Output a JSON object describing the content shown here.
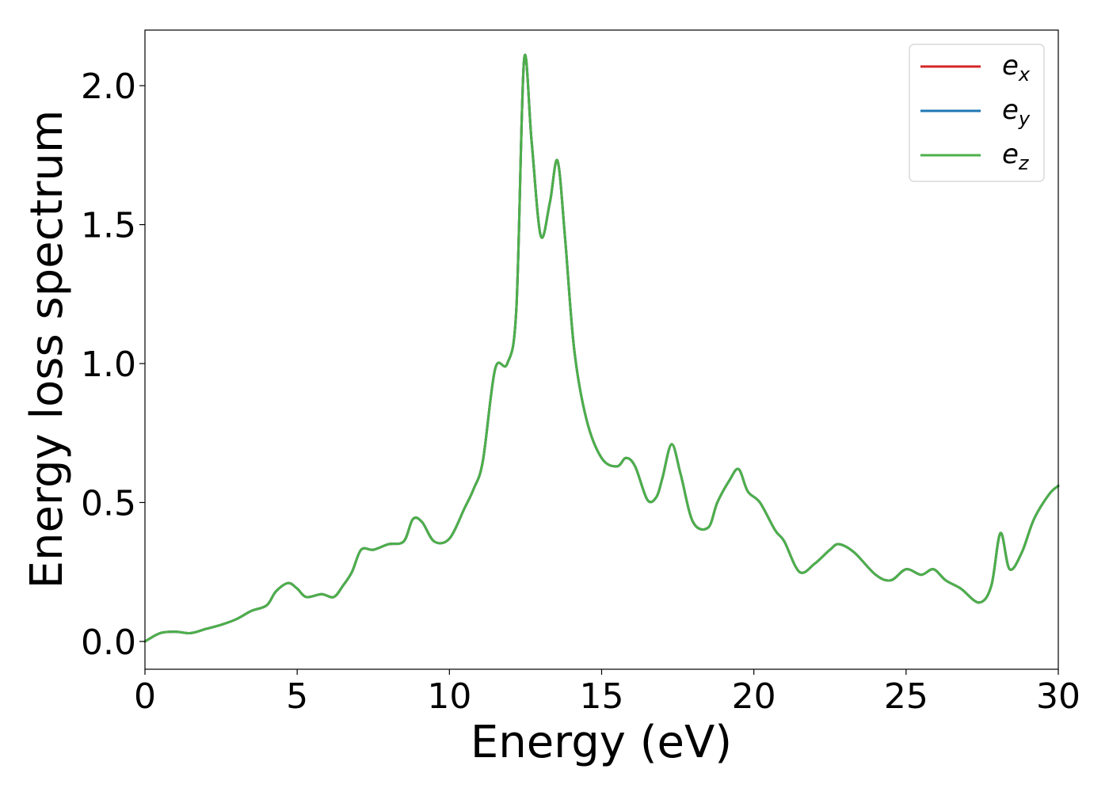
{
  "chart_data": {
    "type": "line",
    "xlabel": "Energy (eV)",
    "ylabel": "Energy loss spectrum",
    "xlim": [
      0,
      30
    ],
    "ylim": [
      -0.1,
      2.2
    ],
    "xticks": [
      0,
      5,
      10,
      15,
      20,
      25,
      30
    ],
    "xtick_labels": [
      "0",
      "5",
      "10",
      "15",
      "20",
      "25",
      "30"
    ],
    "yticks": [
      0.0,
      0.5,
      1.0,
      1.5,
      2.0
    ],
    "ytick_labels": [
      "0.0",
      "0.5",
      "1.0",
      "1.5",
      "2.0"
    ],
    "grid": false,
    "legend_position": "top-right",
    "legend": [
      {
        "base": "e",
        "sub": "x",
        "color": "#d62728"
      },
      {
        "base": "e",
        "sub": "y",
        "color": "#1f77b4"
      },
      {
        "base": "e",
        "sub": "z",
        "color": "#4daf4a"
      }
    ],
    "x": [
      0,
      0.5,
      1,
      1.5,
      2,
      2.5,
      3,
      3.5,
      4,
      4.3,
      4.7,
      5,
      5.3,
      5.8,
      6.2,
      6.5,
      6.8,
      7.1,
      7.5,
      8,
      8.5,
      8.8,
      9.1,
      9.5,
      10,
      10.5,
      10.8,
      11.1,
      11.5,
      11.9,
      12.2,
      12.45,
      12.7,
      13.0,
      13.3,
      13.55,
      13.8,
      14.1,
      14.5,
      15,
      15.5,
      15.8,
      16.1,
      16.5,
      16.8,
      17.0,
      17.3,
      17.6,
      18.0,
      18.5,
      18.8,
      19.2,
      19.5,
      19.8,
      20.2,
      20.7,
      21,
      21.5,
      22,
      22.5,
      22.8,
      23.3,
      24,
      24.5,
      25,
      25.5,
      25.9,
      26.3,
      26.8,
      27.4,
      27.8,
      28.1,
      28.4,
      28.8,
      29.2,
      29.7,
      30
    ],
    "series": [
      {
        "name": "e_x",
        "color": "#d62728",
        "values": [
          0.0,
          0.03,
          0.035,
          0.03,
          0.045,
          0.06,
          0.08,
          0.11,
          0.13,
          0.18,
          0.21,
          0.19,
          0.16,
          0.17,
          0.16,
          0.2,
          0.25,
          0.33,
          0.33,
          0.35,
          0.36,
          0.44,
          0.43,
          0.36,
          0.37,
          0.48,
          0.55,
          0.65,
          0.98,
          1.0,
          1.2,
          2.09,
          1.8,
          1.46,
          1.58,
          1.73,
          1.45,
          1.05,
          0.8,
          0.66,
          0.63,
          0.66,
          0.63,
          0.51,
          0.52,
          0.59,
          0.71,
          0.6,
          0.43,
          0.41,
          0.5,
          0.58,
          0.62,
          0.54,
          0.5,
          0.4,
          0.36,
          0.25,
          0.28,
          0.33,
          0.35,
          0.32,
          0.24,
          0.22,
          0.26,
          0.24,
          0.26,
          0.22,
          0.19,
          0.14,
          0.2,
          0.39,
          0.26,
          0.32,
          0.44,
          0.53,
          0.56
        ]
      },
      {
        "name": "e_y",
        "color": "#1f77b4",
        "values": [
          0.0,
          0.03,
          0.035,
          0.03,
          0.045,
          0.06,
          0.08,
          0.11,
          0.13,
          0.18,
          0.21,
          0.19,
          0.16,
          0.17,
          0.16,
          0.2,
          0.25,
          0.33,
          0.33,
          0.35,
          0.36,
          0.44,
          0.43,
          0.36,
          0.37,
          0.48,
          0.55,
          0.65,
          0.98,
          1.0,
          1.2,
          2.09,
          1.8,
          1.46,
          1.58,
          1.73,
          1.45,
          1.05,
          0.8,
          0.66,
          0.63,
          0.66,
          0.63,
          0.51,
          0.52,
          0.59,
          0.71,
          0.6,
          0.43,
          0.41,
          0.5,
          0.58,
          0.62,
          0.54,
          0.5,
          0.4,
          0.36,
          0.25,
          0.28,
          0.33,
          0.35,
          0.32,
          0.24,
          0.22,
          0.26,
          0.24,
          0.26,
          0.22,
          0.19,
          0.14,
          0.2,
          0.39,
          0.26,
          0.32,
          0.44,
          0.53,
          0.56
        ]
      },
      {
        "name": "e_z",
        "color": "#4daf4a",
        "values": [
          0.0,
          0.03,
          0.035,
          0.03,
          0.045,
          0.06,
          0.08,
          0.11,
          0.13,
          0.18,
          0.21,
          0.19,
          0.16,
          0.17,
          0.16,
          0.2,
          0.25,
          0.33,
          0.33,
          0.35,
          0.36,
          0.44,
          0.43,
          0.36,
          0.37,
          0.48,
          0.55,
          0.65,
          0.98,
          1.0,
          1.2,
          2.09,
          1.8,
          1.46,
          1.58,
          1.73,
          1.45,
          1.05,
          0.8,
          0.66,
          0.63,
          0.66,
          0.63,
          0.51,
          0.52,
          0.59,
          0.71,
          0.6,
          0.43,
          0.41,
          0.5,
          0.58,
          0.62,
          0.54,
          0.5,
          0.4,
          0.36,
          0.25,
          0.28,
          0.33,
          0.35,
          0.32,
          0.24,
          0.22,
          0.26,
          0.24,
          0.26,
          0.22,
          0.19,
          0.14,
          0.2,
          0.39,
          0.26,
          0.32,
          0.44,
          0.53,
          0.56
        ]
      }
    ]
  }
}
